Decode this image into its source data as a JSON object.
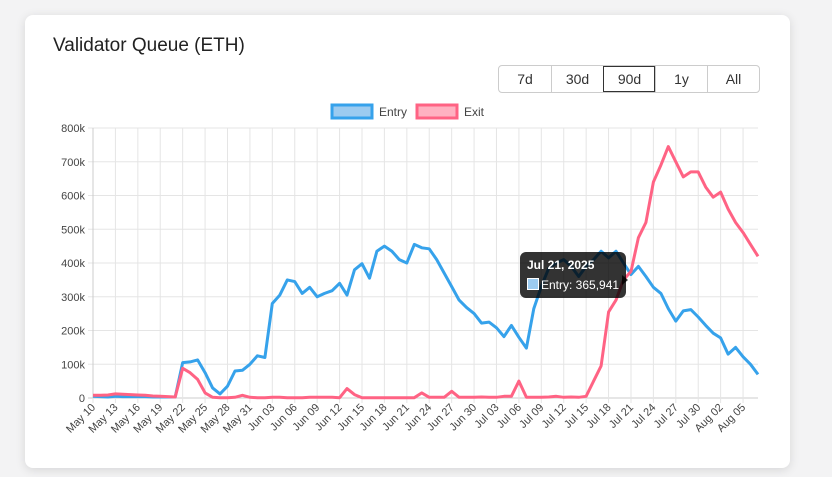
{
  "title": "Validator Queue (ETH)",
  "ranges": [
    "7d",
    "30d",
    "90d",
    "1y",
    "All"
  ],
  "selected_range": "90d",
  "tooltip": {
    "date": "Jul 21, 2025",
    "label": "Entry: 365,941"
  },
  "chart_data": {
    "type": "line",
    "legend_position": "top",
    "grid": true,
    "ylim": [
      0,
      800000
    ],
    "yticks": [
      "0",
      "100k",
      "200k",
      "300k",
      "400k",
      "500k",
      "600k",
      "700k",
      "800k"
    ],
    "x_start": "May 10",
    "x_end": "Aug 07",
    "xticks": [
      "May 10",
      "May 13",
      "May 16",
      "May 19",
      "May 22",
      "May 25",
      "May 28",
      "May 31",
      "Jun 03",
      "Jun 06",
      "Jun 09",
      "Jun 12",
      "Jun 15",
      "Jun 18",
      "Jun 21",
      "Jun 24",
      "Jun 27",
      "Jun 30",
      "Jul 03",
      "Jul 06",
      "Jul 09",
      "Jul 12",
      "Jul 15",
      "Jul 18",
      "Jul 21",
      "Jul 24",
      "Jul 27",
      "Jul 30",
      "Aug 02",
      "Aug 05"
    ],
    "series": [
      {
        "name": "Entry",
        "color": "#36a2eb",
        "fill": "#9ccbf0",
        "values": [
          5000,
          4000,
          3000,
          5000,
          4000,
          4000,
          4000,
          4000,
          3000,
          3000,
          3000,
          3000,
          105000,
          107000,
          113000,
          75000,
          30000,
          12000,
          35000,
          80000,
          82000,
          100000,
          125000,
          120000,
          280000,
          305000,
          350000,
          345000,
          310000,
          328000,
          300000,
          310000,
          318000,
          340000,
          305000,
          380000,
          398000,
          355000,
          435000,
          450000,
          435000,
          410000,
          400000,
          455000,
          445000,
          442000,
          410000,
          370000,
          330000,
          290000,
          268000,
          250000,
          222000,
          225000,
          208000,
          182000,
          215000,
          180000,
          148000,
          265000,
          330000,
          385000,
          400000,
          410000,
          390000,
          360000,
          390000,
          410000,
          435000,
          415000,
          435000,
          400000,
          365941,
          390000,
          360000,
          328000,
          310000,
          265000,
          228000,
          258000,
          262000,
          240000,
          215000,
          192000,
          178000,
          130000,
          150000,
          122000,
          100000,
          70000
        ]
      },
      {
        "name": "Exit",
        "color": "#ff6384",
        "fill": "#ffb1c1",
        "values": [
          8000,
          8000,
          9000,
          12000,
          11000,
          10000,
          9000,
          8000,
          6000,
          5000,
          4000,
          3000,
          88000,
          75000,
          55000,
          15000,
          2000,
          1000,
          1000,
          2000,
          8000,
          2000,
          1000,
          1000,
          2000,
          2000,
          1000,
          1000,
          1000,
          2000,
          2000,
          2000,
          2000,
          1000,
          28000,
          10000,
          1000,
          1000,
          1000,
          1000,
          1000,
          1000,
          1000,
          1000,
          15000,
          2000,
          2000,
          2000,
          20000,
          2000,
          2000,
          2000,
          3000,
          2000,
          2000,
          5000,
          5000,
          50000,
          2000,
          2000,
          2000,
          3000,
          5000,
          2000,
          3000,
          2000,
          5000,
          50000,
          95000,
          255000,
          290000,
          350000,
          375000,
          475000,
          520000,
          640000,
          690000,
          745000,
          700000,
          655000,
          670000,
          670000,
          625000,
          595000,
          610000,
          560000,
          520000,
          490000,
          455000,
          420000
        ]
      }
    ]
  }
}
